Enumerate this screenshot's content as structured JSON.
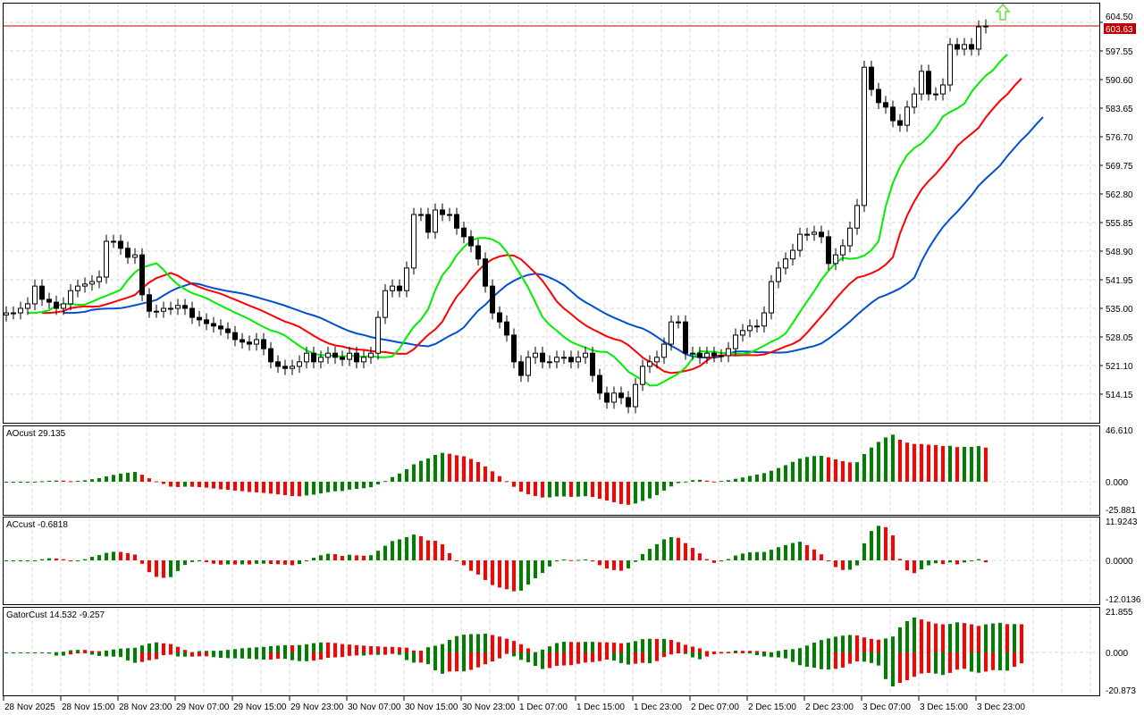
{
  "chart_data": {
    "type": "candlestick",
    "timeframe_hours": 1,
    "main": {
      "price_ticks": [
        "604.50",
        "597.55",
        "590.60",
        "583.65",
        "576.70",
        "569.75",
        "562.80",
        "555.85",
        "548.90",
        "541.95",
        "535.00",
        "528.05",
        "521.10",
        "514.15"
      ],
      "current_price": "603.63",
      "colors": {
        "lips": "#00ee00",
        "teeth": "#ff0000",
        "jaw": "#0050d0",
        "bid_line": "#c00000",
        "signal_arrow": "#66dd44"
      },
      "closes": [
        533.9,
        533.9,
        535.0,
        536.1,
        540.4,
        537.2,
        536.5,
        535.0,
        536.1,
        539.3,
        540.4,
        540.9,
        541.5,
        542.6,
        551.3,
        551.3,
        549.6,
        547.4,
        548.0,
        538.3,
        534.3,
        534.3,
        535.0,
        535.0,
        535.7,
        535.0,
        532.8,
        532.2,
        531.3,
        530.7,
        530.0,
        529.1,
        527.4,
        526.8,
        526.3,
        527.4,
        525.2,
        522.0,
        520.9,
        520.4,
        520.9,
        522.0,
        524.1,
        522.0,
        523.1,
        524.1,
        523.1,
        522.6,
        524.1,
        522.0,
        523.1,
        524.1,
        532.8,
        539.3,
        540.4,
        539.3,
        544.8,
        557.8,
        557.8,
        553.5,
        558.9,
        557.8,
        557.8,
        554.5,
        552.4,
        550.2,
        547.0,
        540.4,
        533.9,
        531.7,
        528.5,
        522.0,
        518.7,
        523.1,
        524.1,
        522.0,
        522.0,
        523.1,
        523.1,
        522.0,
        523.1,
        524.1,
        518.7,
        514.4,
        512.2,
        514.4,
        513.3,
        511.1,
        516.5,
        520.9,
        522.0,
        523.1,
        526.3,
        531.7,
        531.7,
        524.1,
        524.1,
        523.1,
        524.1,
        523.5,
        523.5,
        525.2,
        528.5,
        529.6,
        530.7,
        530.7,
        533.9,
        541.5,
        544.8,
        547.0,
        549.1,
        553.0,
        553.0,
        553.5,
        552.4,
        545.9,
        548.0,
        550.2,
        554.5,
        560.0,
        593.6,
        588.2,
        585.0,
        583.9,
        580.6,
        579.5,
        583.9,
        587.1,
        592.6,
        587.1,
        587.1,
        589.3,
        599.1,
        598.0,
        599.1,
        598.0,
        603.4,
        603.63
      ]
    },
    "indicators": [
      {
        "label": "AOcust 29.135",
        "ticks": [
          "46.610",
          "0.000",
          "-25.881"
        ],
        "range": [
          -25.881,
          46.61
        ]
      },
      {
        "label": "ACcust -0.6818",
        "ticks": [
          "11.9243",
          "0.0000",
          "-12.0136"
        ],
        "range": [
          -12.0136,
          11.9243
        ]
      },
      {
        "label": "GatorCust 14.532 -9.257",
        "ticks": [
          "21.855",
          "0.000",
          "-20.873"
        ],
        "range": [
          -20.873,
          21.855
        ]
      }
    ],
    "bar_colors": {
      "up": "#008000",
      "down": "#ff0000"
    },
    "time_ticks": [
      "28 Nov 2025",
      "28 Nov 15:00",
      "28 Nov 23:00",
      "29 Nov 07:00",
      "29 Nov 15:00",
      "29 Nov 23:00",
      "30 Nov 07:00",
      "30 Nov 15:00",
      "30 Nov 23:00",
      "1 Dec 07:00",
      "1 Dec 15:00",
      "1 Dec 23:00",
      "2 Dec 07:00",
      "2 Dec 15:00",
      "2 Dec 23:00",
      "3 Dec 07:00",
      "3 Dec 15:00",
      "3 Dec 23:00"
    ]
  }
}
